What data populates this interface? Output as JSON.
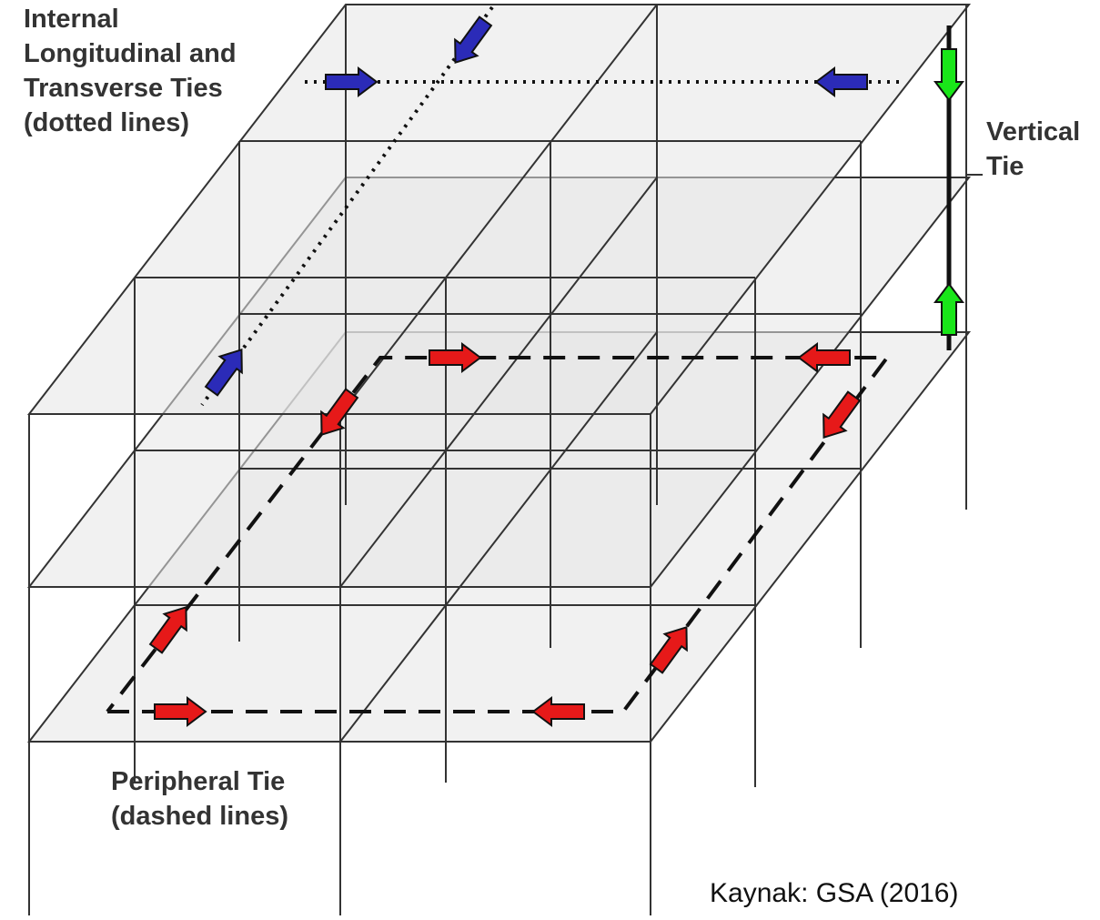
{
  "labels": {
    "internal_ties": [
      "Internal",
      "Longitudinal and",
      "Transverse Ties",
      "(dotted lines)"
    ],
    "vertical_tie": [
      "Vertical",
      "Tie"
    ],
    "peripheral_tie": [
      "Peripheral Tie",
      "(dashed lines)"
    ],
    "source": "Kaynak: GSA (2016)"
  },
  "colors": {
    "slab_fill": "#e6e6e6",
    "frame_line": "#333333",
    "internal_tie_arrow": "#2b2bb8",
    "peripheral_tie_arrow": "#e61919",
    "vertical_tie_arrow": "#19e619",
    "label_text": "#333333"
  },
  "arrows": {
    "internal_tie": [
      "arrow-right-icon",
      "arrow-down-left-icon",
      "arrow-left-icon",
      "arrow-up-right-icon"
    ],
    "peripheral_tie": [
      "arrow-right-icon",
      "arrow-left-icon",
      "arrow-down-left-icon",
      "arrow-up-right-icon"
    ],
    "vertical_tie": [
      "arrow-down-icon",
      "arrow-up-icon"
    ]
  }
}
